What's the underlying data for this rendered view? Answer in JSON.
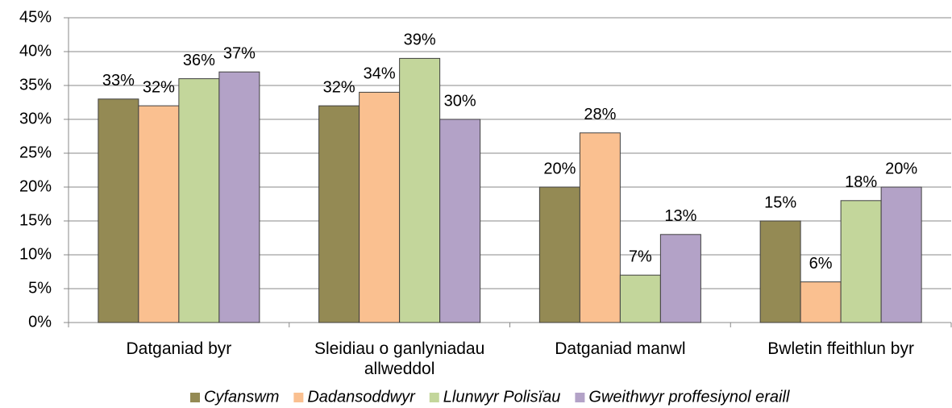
{
  "chart_data": {
    "type": "bar",
    "categories": [
      "Datganiad byr",
      "Sleidiau o ganlyniadau allweddol",
      "Datganiad manwl",
      "Bwletin ffeithlun byr"
    ],
    "series": [
      {
        "name": "Cyfanswm",
        "color": "#948a54",
        "values": [
          33,
          32,
          20,
          15
        ],
        "value_labels": [
          "33%",
          "32%",
          "20%",
          "15%"
        ]
      },
      {
        "name": "Dadansoddwyr",
        "color": "#fac090",
        "values": [
          32,
          34,
          28,
          6
        ],
        "value_labels": [
          "32%",
          "34%",
          "28%",
          "6%"
        ]
      },
      {
        "name": "Llunwyr Polisïau",
        "color": "#c3d69b",
        "values": [
          36,
          39,
          7,
          18
        ],
        "value_labels": [
          "36%",
          "39%",
          "7%",
          "18%"
        ]
      },
      {
        "name": "Gweithwyr proffesiynol eraill",
        "color": "#b3a2c7",
        "values": [
          37,
          30,
          13,
          20
        ],
        "value_labels": [
          "37%",
          "30%",
          "13%",
          "20%"
        ]
      }
    ],
    "ylim": [
      0,
      45
    ],
    "yticks": [
      {
        "value": 0,
        "label": "0%"
      },
      {
        "value": 5,
        "label": "5%"
      },
      {
        "value": 10,
        "label": "10%"
      },
      {
        "value": 15,
        "label": "15%"
      },
      {
        "value": 20,
        "label": "20%"
      },
      {
        "value": 25,
        "label": "25%"
      },
      {
        "value": 30,
        "label": "30%"
      },
      {
        "value": 35,
        "label": "35%"
      },
      {
        "value": 40,
        "label": "40%"
      },
      {
        "value": 45,
        "label": "45%"
      }
    ],
    "grid": true,
    "legend": "bottom"
  }
}
